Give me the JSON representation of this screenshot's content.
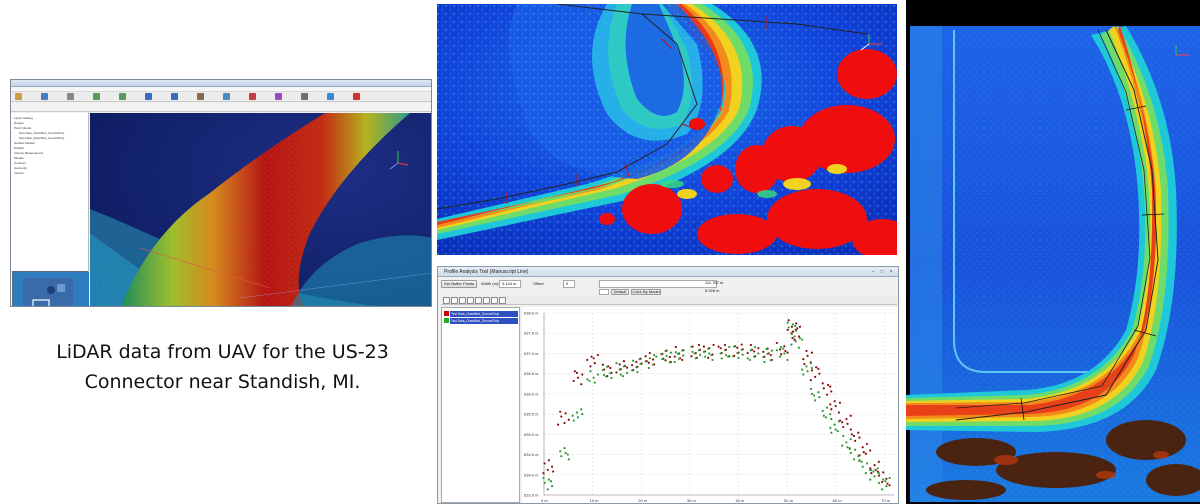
{
  "caption": {
    "line1": "LiDAR data from UAV for the US-23",
    "line2": "Connector near Standish, MI."
  },
  "gis_window": {
    "tree_items": [
      "Layer Catalog",
      "Drapes",
      "Point Clouds",
      "Test Data_Classified_GroundOnly",
      "Test Data_Classified_GroundOnly",
      "Surface Models",
      "Profiles",
      "Volume Measurement",
      "Models",
      "Contours",
      "Geometry",
      "Vectors"
    ],
    "toolbar_icons": [
      "open-icon",
      "save-icon",
      "print-icon",
      "undo-icon",
      "redo-icon",
      "zoom-in-icon",
      "zoom-out-icon",
      "pan-icon",
      "rotate-icon",
      "measure-icon",
      "profile-icon",
      "settings-icon",
      "help-icon",
      "close-icon"
    ]
  },
  "profile_window": {
    "title": "Profile Analysis Tool (Manuscript Line)",
    "get_buffer_button": "Get Buffer Points",
    "width_label": "Width (m):",
    "width_value": "0.144 m",
    "offset_label": "Offset",
    "offset_value": "0",
    "range_value": "111.767 m",
    "default_button": "Default",
    "color_by_model_button": "Color By Model",
    "ratio_value": "5.926 m",
    "layers": [
      {
        "name": "Test Data_Classified_GroundOnly",
        "color": "#cc0000"
      },
      {
        "name": "Test Data_Classified_GroundOnly",
        "color": "#22aa22"
      }
    ]
  },
  "chart_data": {
    "type": "scatter",
    "title": "",
    "xlabel": "",
    "ylabel": "",
    "x_ticks": [
      "0 m",
      "10 m",
      "20 m",
      "30 m",
      "40 m",
      "50 m",
      "60 m",
      "70 m"
    ],
    "y_ticks": [
      "633.5 m",
      "634.0 m",
      "634.5 m",
      "635.0 m",
      "635.5 m",
      "636.0 m",
      "636.5 m",
      "637.0 m",
      "637.5 m",
      "638.0 m"
    ],
    "xlim": [
      0,
      72
    ],
    "ylim": [
      633.5,
      638.0
    ],
    "grid": true,
    "series": [
      {
        "color": "#8b0d0d",
        "x": [
          1,
          4,
          7,
          10,
          13,
          16,
          19,
          22,
          25,
          28,
          31,
          34,
          37,
          40,
          43,
          46,
          49,
          51,
          52,
          54,
          56,
          58,
          60,
          62,
          64,
          66,
          68,
          70
        ],
        "y": [
          634.2,
          635.4,
          636.4,
          636.8,
          636.6,
          636.65,
          636.75,
          636.85,
          636.95,
          637.0,
          637.05,
          637.05,
          637.05,
          637.1,
          637.05,
          637.0,
          637.1,
          637.7,
          637.5,
          636.9,
          636.5,
          636.1,
          635.7,
          635.3,
          635.0,
          634.6,
          634.2,
          633.9
        ]
      },
      {
        "color": "#2f9a2f",
        "x": [
          1,
          4,
          7,
          10,
          13,
          16,
          19,
          22,
          25,
          28,
          31,
          34,
          37,
          40,
          43,
          46,
          49,
          51,
          52,
          54,
          56,
          58,
          60,
          62,
          64,
          66,
          68,
          70
        ],
        "y": [
          633.8,
          634.5,
          635.5,
          636.4,
          636.55,
          636.6,
          636.7,
          636.8,
          636.9,
          636.95,
          637.0,
          637.0,
          637.0,
          637.05,
          637.0,
          636.95,
          637.0,
          637.6,
          637.3,
          636.6,
          636.0,
          635.5,
          635.2,
          634.8,
          634.5,
          634.2,
          634.0,
          633.8
        ]
      }
    ]
  }
}
